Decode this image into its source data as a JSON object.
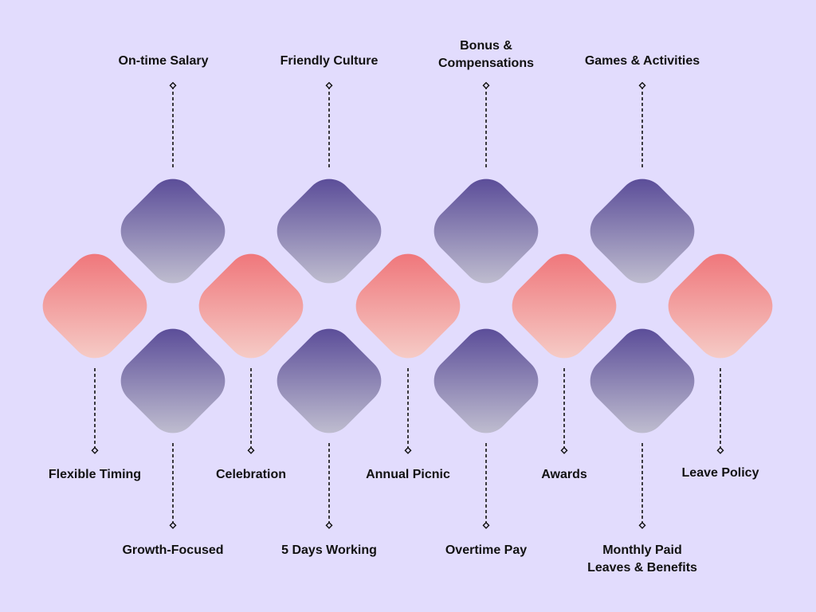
{
  "colors": {
    "background": "#e2dcfd",
    "coral_start": "#ef6f74",
    "coral_end": "#f6d3cd",
    "purple_start": "#524394",
    "purple_end": "#c8c7d4",
    "connector": "#111111"
  },
  "items": [
    {
      "label": "On-time Salary",
      "group": "top"
    },
    {
      "label": "Friendly Culture",
      "group": "top"
    },
    {
      "label": "Bonus &\nCompensations",
      "group": "top"
    },
    {
      "label": "Games & Activities",
      "group": "top"
    },
    {
      "label": "Flexible Timing",
      "group": "middle"
    },
    {
      "label": "Celebration",
      "group": "middle"
    },
    {
      "label": "Annual Picnic",
      "group": "middle"
    },
    {
      "label": "Awards",
      "group": "middle"
    },
    {
      "label": "Leave Policy",
      "group": "middle"
    },
    {
      "label": "Growth-Focused",
      "group": "bottom"
    },
    {
      "label": "5 Days Working",
      "group": "bottom"
    },
    {
      "label": "Overtime Pay",
      "group": "bottom"
    },
    {
      "label": "Monthly Paid\nLeaves & Benefits",
      "group": "bottom"
    }
  ]
}
